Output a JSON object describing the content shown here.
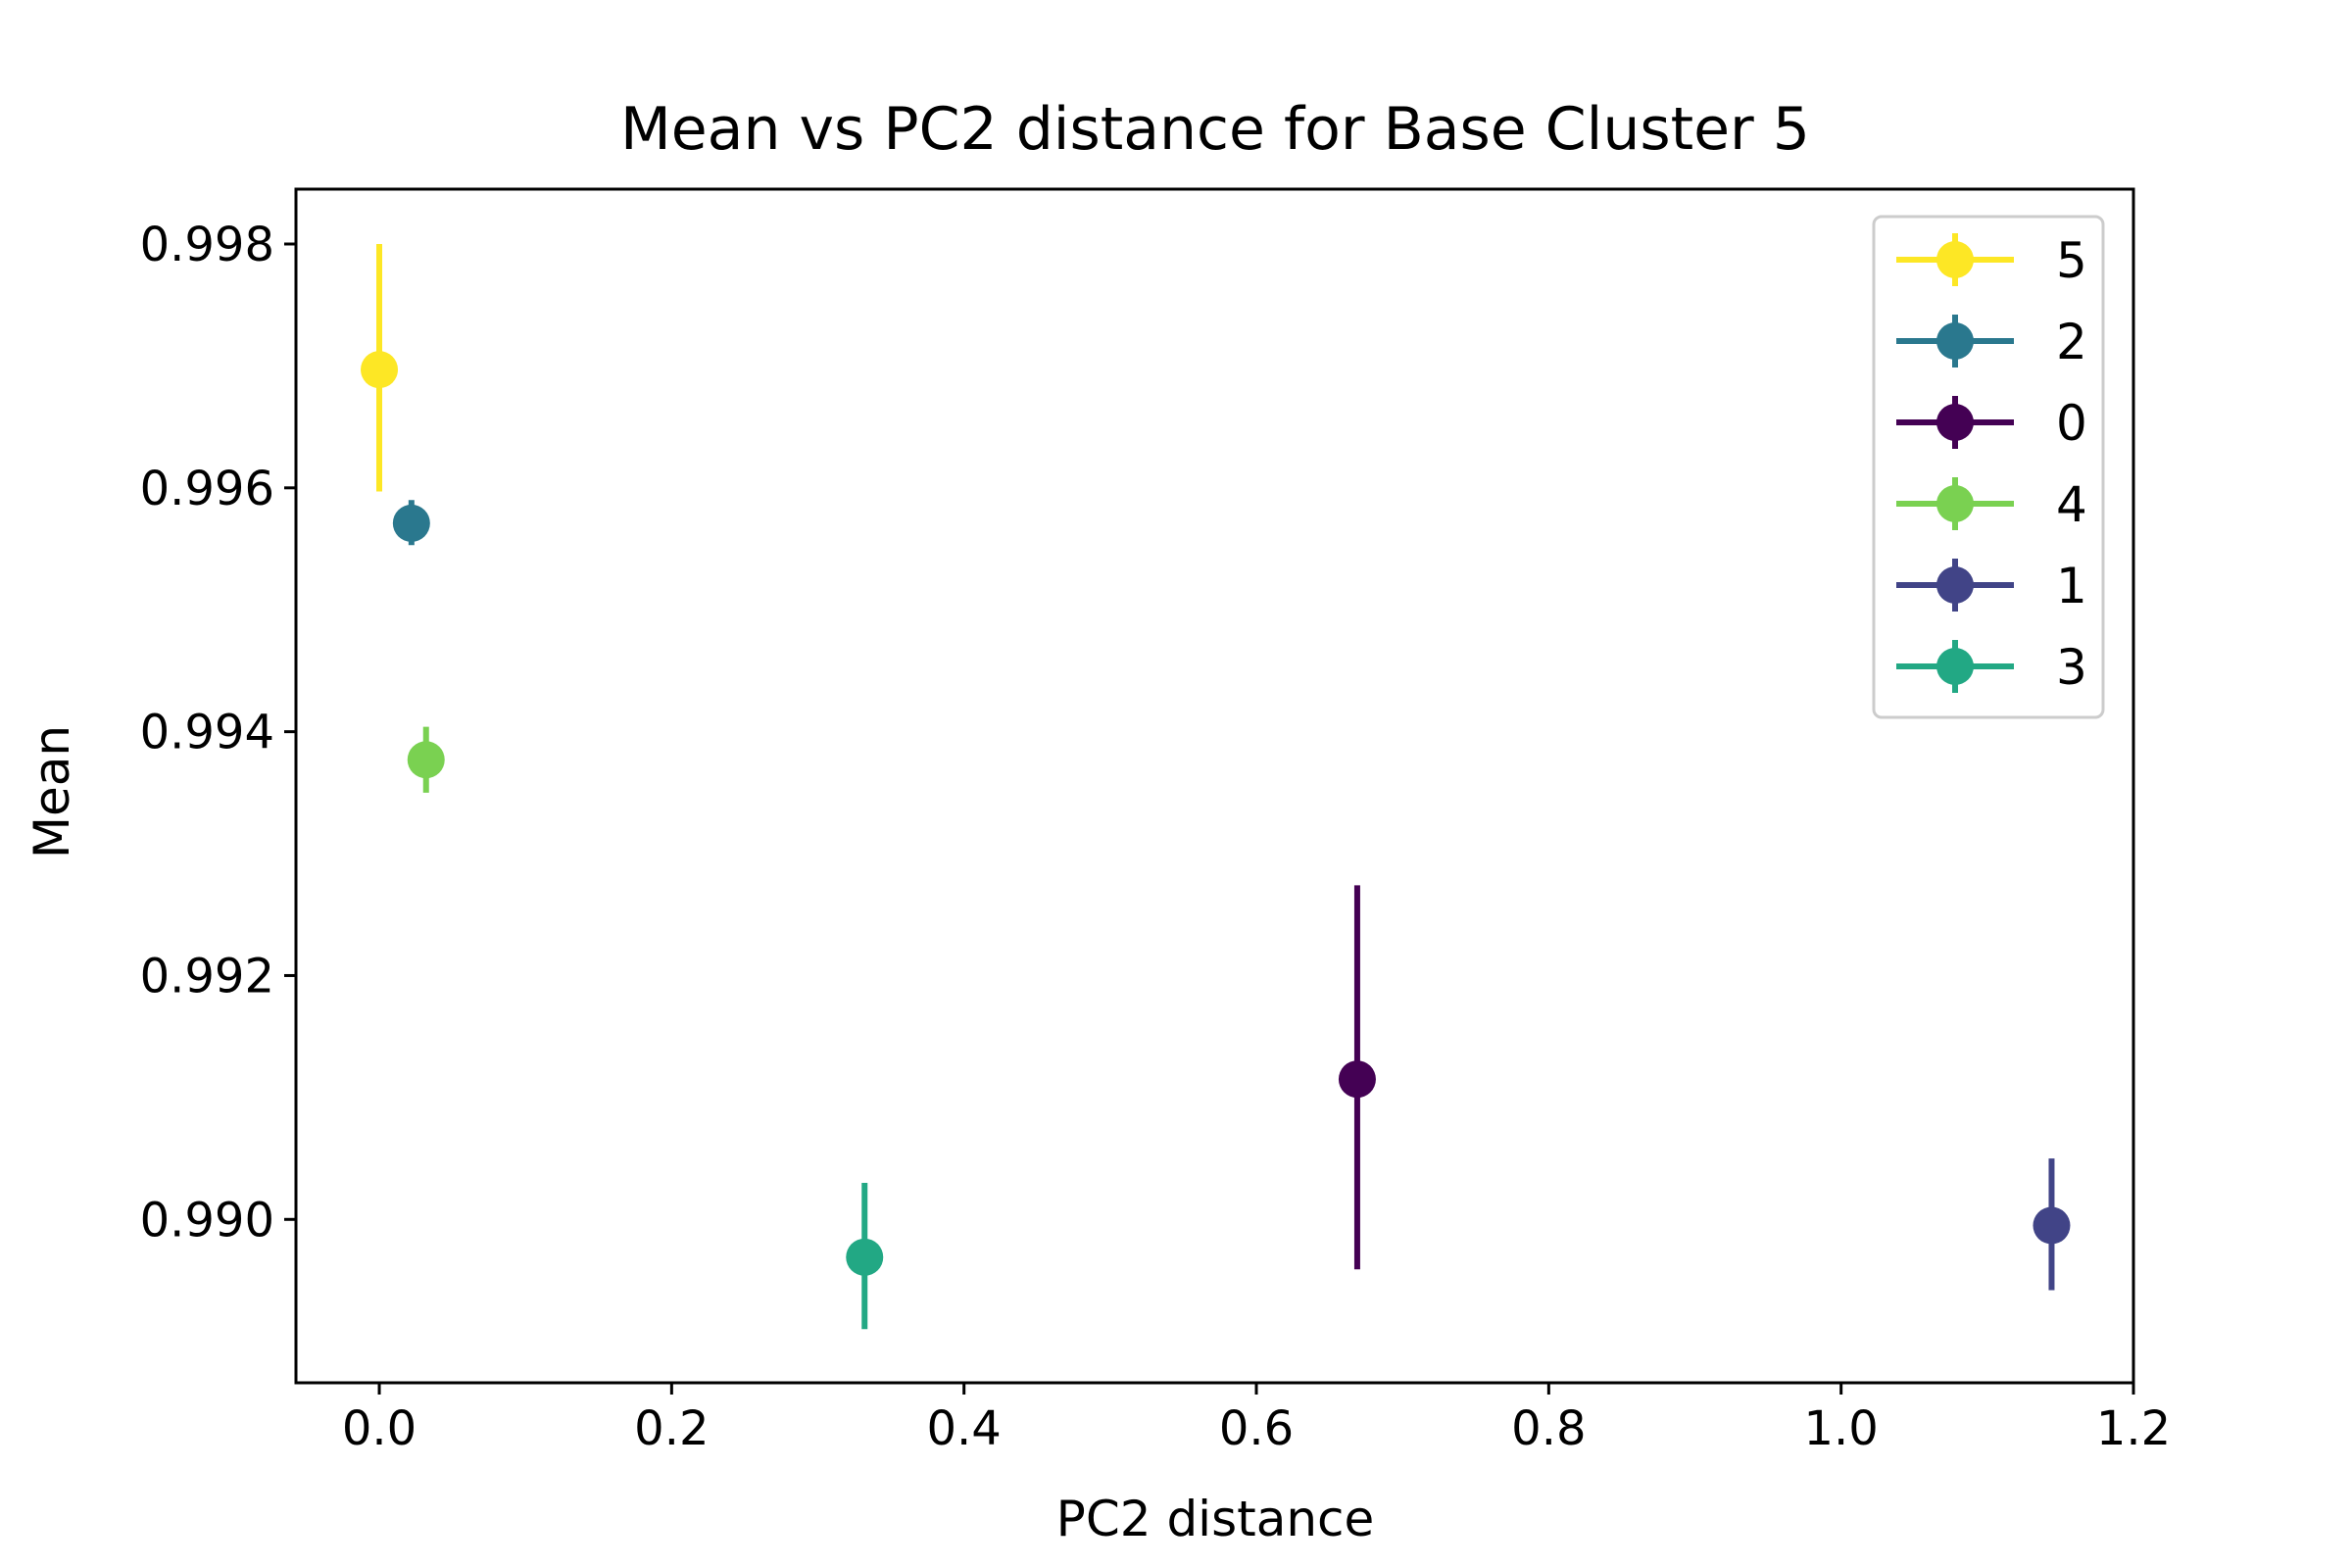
{
  "chart_data": {
    "type": "scatter",
    "title": "Mean vs PC2 distance for Base Cluster 5",
    "xlabel": "PC2 distance",
    "ylabel": "Mean",
    "xlim": [
      -0.057,
      1.2
    ],
    "ylim": [
      0.98866,
      0.99845
    ],
    "xticks": [
      0.0,
      0.2,
      0.4,
      0.6,
      0.8,
      1.0,
      1.2
    ],
    "xtick_labels": [
      "0.0",
      "0.2",
      "0.4",
      "0.6",
      "0.8",
      "1.0",
      "1.2"
    ],
    "yticks": [
      0.99,
      0.992,
      0.994,
      0.996,
      0.998
    ],
    "ytick_labels": [
      "0.990",
      "0.992",
      "0.994",
      "0.996",
      "0.998"
    ],
    "grid": false,
    "legend_position": "top-right",
    "series": [
      {
        "name": "5",
        "color": "#fde725",
        "x": 0.0,
        "y": 0.99697,
        "err_low": 0.99597,
        "err_high": 0.998
      },
      {
        "name": "2",
        "color": "#2a788e",
        "x": 0.022,
        "y": 0.99571,
        "err_low": 0.99553,
        "err_high": 0.9959
      },
      {
        "name": "0",
        "color": "#440154",
        "x": 0.669,
        "y": 0.99115,
        "err_low": 0.98959,
        "err_high": 0.99274
      },
      {
        "name": "4",
        "color": "#7ad151",
        "x": 0.032,
        "y": 0.99377,
        "err_low": 0.9935,
        "err_high": 0.99404
      },
      {
        "name": "1",
        "color": "#414487",
        "x": 1.144,
        "y": 0.98995,
        "err_low": 0.98942,
        "err_high": 0.9905
      },
      {
        "name": "3",
        "color": "#22a884",
        "x": 0.332,
        "y": 0.98969,
        "err_low": 0.9891,
        "err_high": 0.9903
      }
    ]
  }
}
